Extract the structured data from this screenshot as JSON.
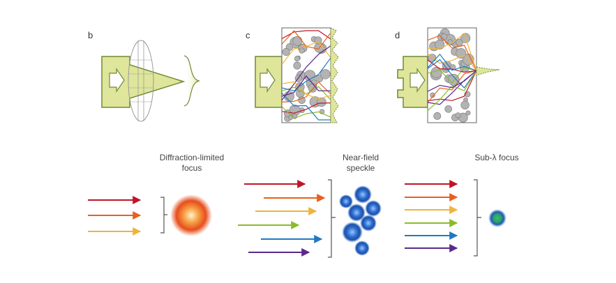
{
  "panels": [
    {
      "letter": "b"
    },
    {
      "letter": "c"
    },
    {
      "letter": "d"
    }
  ],
  "captions": {
    "diffraction": [
      "Diffraction-limited",
      "focus"
    ],
    "speckle": [
      "Near-field",
      "speckle"
    ],
    "sublambda": "Sub-λ focus"
  },
  "colors": {
    "beam_fill": "#dfe59b",
    "beam_stroke": "#6f8a35",
    "medium_circle": "#b3b3b3",
    "arrows": [
      "#c01428",
      "#e8601e",
      "#f0b43a",
      "#8cbb2a",
      "#1f79c2",
      "#5a2a8a"
    ],
    "focus_red": "#e64e1c",
    "speckle_blue": "#2d6fd0",
    "sub_focus": "#2aa06a"
  }
}
